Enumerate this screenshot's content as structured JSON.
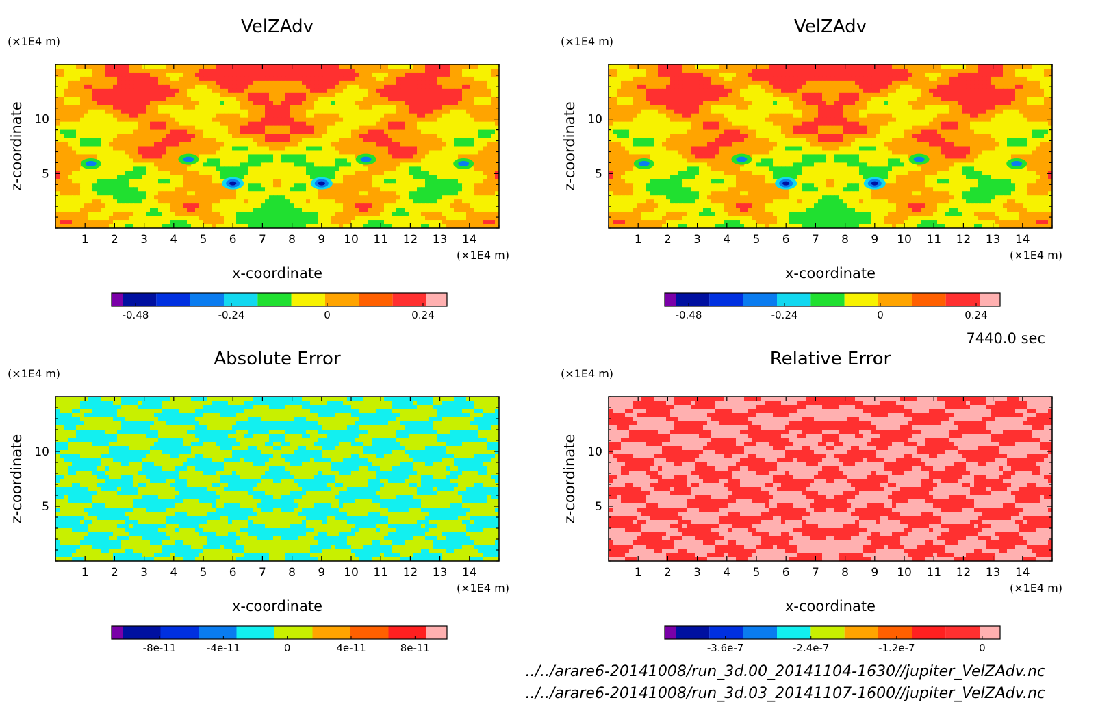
{
  "time_label": "7440.0 sec",
  "footer": {
    "file1": "../../arare6-20141008/run_3d.00_20141104-1630//jupiter_VelZAdv.nc",
    "file2": "../../arare6-20141008/run_3d.03_20141107-1600//jupiter_VelZAdv.nc"
  },
  "chart_data": [
    {
      "type": "heatmap",
      "title": "VelZAdv",
      "xlabel": "x-coordinate",
      "ylabel": "z-coordinate",
      "x_unit": "(×1E4 m)",
      "y_unit": "(×1E4 m)",
      "xlim": [
        0,
        15
      ],
      "ylim": [
        0,
        15
      ],
      "x_ticks": [
        1,
        2,
        3,
        4,
        5,
        6,
        7,
        8,
        9,
        10,
        11,
        12,
        13,
        14
      ],
      "y_ticks": [
        5,
        10
      ],
      "colorbar": {
        "colors": [
          "#7a00a8",
          "#0010a0",
          "#0030e0",
          "#0a7cf0",
          "#12d8f0",
          "#20e030",
          "#f7f200",
          "#ffa400",
          "#ff6000",
          "#ff3030",
          "#ffb0b0"
        ],
        "tick_labels": [
          "-0.48",
          "-0.24",
          "0",
          "0.24"
        ],
        "tick_positions": [
          -0.48,
          -0.24,
          0,
          0.24
        ],
        "range": [
          -0.54,
          0.3
        ]
      },
      "dominant_levels": [
        "#f7f200",
        "#ffa400",
        "#ff3030",
        "#20e030"
      ],
      "field": "velocity"
    },
    {
      "type": "heatmap",
      "title": "VelZAdv",
      "xlabel": "x-coordinate",
      "ylabel": "z-coordinate",
      "x_unit": "(×1E4 m)",
      "y_unit": "(×1E4 m)",
      "xlim": [
        0,
        15
      ],
      "ylim": [
        0,
        15
      ],
      "x_ticks": [
        1,
        2,
        3,
        4,
        5,
        6,
        7,
        8,
        9,
        10,
        11,
        12,
        13,
        14
      ],
      "y_ticks": [
        5,
        10
      ],
      "colorbar": {
        "colors": [
          "#7a00a8",
          "#0010a0",
          "#0030e0",
          "#0a7cf0",
          "#12d8f0",
          "#20e030",
          "#f7f200",
          "#ffa400",
          "#ff6000",
          "#ff3030",
          "#ffb0b0"
        ],
        "tick_labels": [
          "-0.48",
          "-0.24",
          "0",
          "0.24"
        ],
        "tick_positions": [
          -0.48,
          -0.24,
          0,
          0.24
        ],
        "range": [
          -0.54,
          0.3
        ]
      },
      "dominant_levels": [
        "#f7f200",
        "#ffa400",
        "#ff3030",
        "#20e030"
      ],
      "field": "velocity"
    },
    {
      "type": "heatmap",
      "title": "Absolute Error",
      "xlabel": "x-coordinate",
      "ylabel": "z-coordinate",
      "x_unit": "(×1E4 m)",
      "y_unit": "(×1E4 m)",
      "xlim": [
        0,
        15
      ],
      "ylim": [
        0,
        15
      ],
      "x_ticks": [
        1,
        2,
        3,
        4,
        5,
        6,
        7,
        8,
        9,
        10,
        11,
        12,
        13,
        14
      ],
      "y_ticks": [
        5,
        10
      ],
      "colorbar": {
        "colors": [
          "#7a00a8",
          "#0010a0",
          "#0030e0",
          "#0a7cf0",
          "#12f0f0",
          "#c8f000",
          "#ffa400",
          "#ff6000",
          "#ff2020",
          "#ffb0b0"
        ],
        "tick_labels": [
          "-8e-11",
          "-4e-11",
          "0",
          "4e-11",
          "8e-11"
        ],
        "tick_positions": [
          -8e-11,
          -4e-11,
          0,
          4e-11,
          8e-11
        ],
        "range": [
          -1.1e-10,
          1e-10
        ]
      },
      "dominant_levels": [
        "#12f0f0",
        "#c8f000"
      ],
      "field": "pattern-2"
    },
    {
      "type": "heatmap",
      "title": "Relative Error",
      "xlabel": "x-coordinate",
      "ylabel": "z-coordinate",
      "x_unit": "(×1E4 m)",
      "y_unit": "(×1E4 m)",
      "xlim": [
        0,
        15
      ],
      "ylim": [
        0,
        15
      ],
      "x_ticks": [
        1,
        2,
        3,
        4,
        5,
        6,
        7,
        8,
        9,
        10,
        11,
        12,
        13,
        14
      ],
      "y_ticks": [
        5,
        10
      ],
      "colorbar": {
        "colors": [
          "#7a00a8",
          "#0010a0",
          "#0030e0",
          "#0a7cf0",
          "#12f0f0",
          "#c8f000",
          "#ffa400",
          "#ff6000",
          "#ff2020",
          "#ff3030",
          "#ffb0b0"
        ],
        "tick_labels": [
          "-3.6e-7",
          "-2.4e-7",
          "-1.2e-7",
          "0"
        ],
        "tick_positions": [
          -3.6e-07,
          -2.4e-07,
          -1.2e-07,
          0
        ],
        "range": [
          -4.45e-07,
          2.5e-08
        ]
      },
      "dominant_levels": [
        "#ff3030",
        "#ffb0b0"
      ],
      "field": "pattern-2"
    }
  ]
}
